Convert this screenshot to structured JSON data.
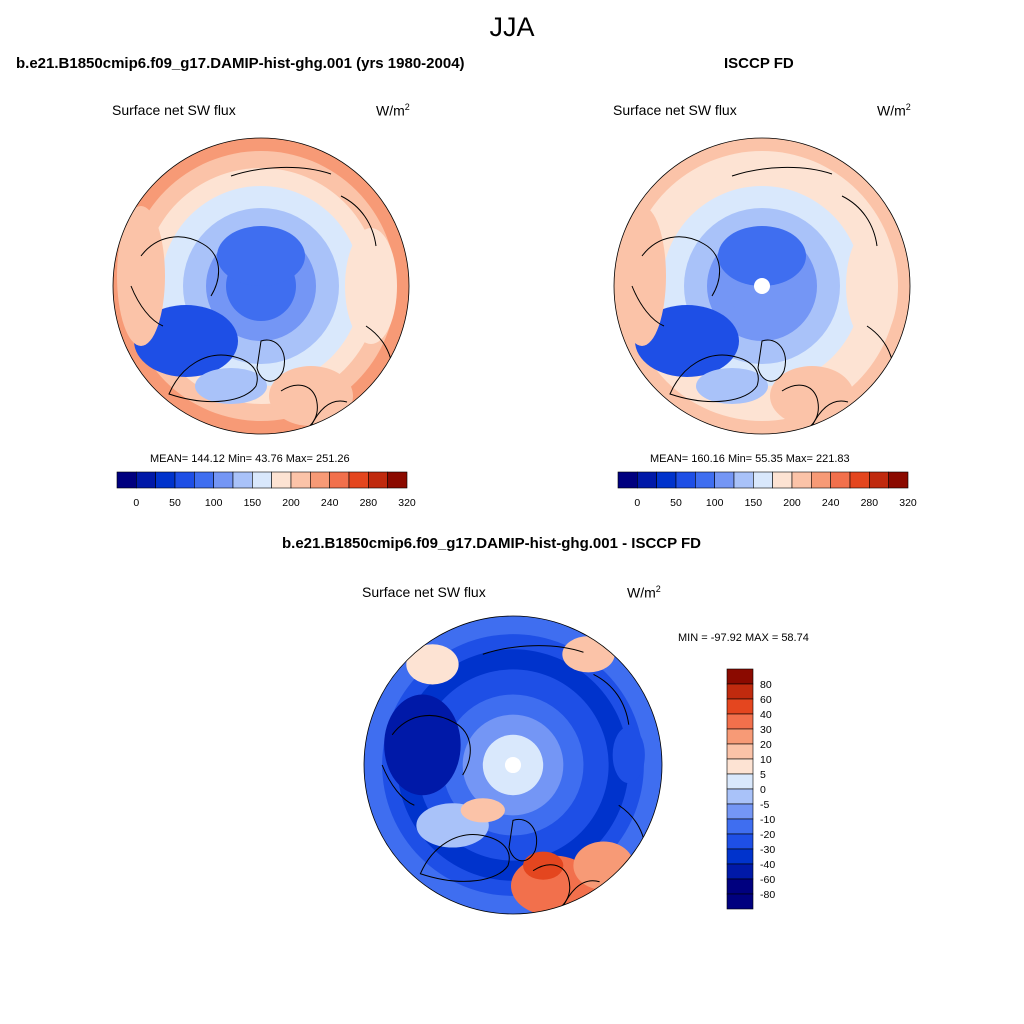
{
  "season": "JJA",
  "colors": {
    "abs_levels": [
      "#00007f",
      "#0019a8",
      "#0033cc",
      "#1e4fe6",
      "#3f6ef0",
      "#7496f5",
      "#a9c2f9",
      "#d9e8fc",
      "#fde3d3",
      "#fbc3a8",
      "#f79a76",
      "#f2704c",
      "#e4461f",
      "#c02a0e",
      "#8b0a00"
    ],
    "diff_levels": [
      "#00007f",
      "#0019a8",
      "#0033cc",
      "#1e4fe6",
      "#3f6ef0",
      "#7496f5",
      "#a9c2f9",
      "#d9e8fc",
      "#fde3d3",
      "#fbc3a8",
      "#f79a76",
      "#f2704c",
      "#e4461f",
      "#c02a0e",
      "#8b0a00"
    ],
    "coastline": "#000000"
  },
  "panels": {
    "model": {
      "title": "b.e21.B1850cmip6.f09_g17.DAMIP-hist-ghg.001 (yrs 1980-2004)",
      "variable": "Surface net SW flux",
      "units_base": "W/m",
      "units_exp": "2",
      "stats": "MEAN= 144.12  Min=  43.76  Max= 251.26",
      "field": {
        "mean": 144.12,
        "min": 43.76,
        "max": 251.26,
        "pole_hole": false
      }
    },
    "obs": {
      "title": "ISCCP FD",
      "variable": "Surface net SW flux",
      "units_base": "W/m",
      "units_exp": "2",
      "stats": "MEAN= 160.16  Min=  55.35  Max= 221.83",
      "field": {
        "mean": 160.16,
        "min": 55.35,
        "max": 221.83,
        "pole_hole": true
      }
    },
    "diff": {
      "title": "b.e21.B1850cmip6.f09_g17.DAMIP-hist-ghg.001 - ISCCP FD",
      "variable": "Surface net SW flux",
      "units_base": "W/m",
      "units_exp": "2",
      "stats": "MIN = -97.92 MAX =  58.74",
      "field": {
        "min": -97.92,
        "max": 58.74,
        "pole_hole": true
      }
    }
  },
  "colorbar_abs": {
    "tick_labels": [
      "0",
      "50",
      "100",
      "150",
      "200",
      "240",
      "280",
      "320"
    ]
  },
  "colorbar_diff": {
    "tick_labels": [
      "80",
      "60",
      "40",
      "30",
      "20",
      "10",
      "5",
      "0",
      "-5",
      "-10",
      "-20",
      "-30",
      "-40",
      "-60",
      "-80"
    ]
  }
}
